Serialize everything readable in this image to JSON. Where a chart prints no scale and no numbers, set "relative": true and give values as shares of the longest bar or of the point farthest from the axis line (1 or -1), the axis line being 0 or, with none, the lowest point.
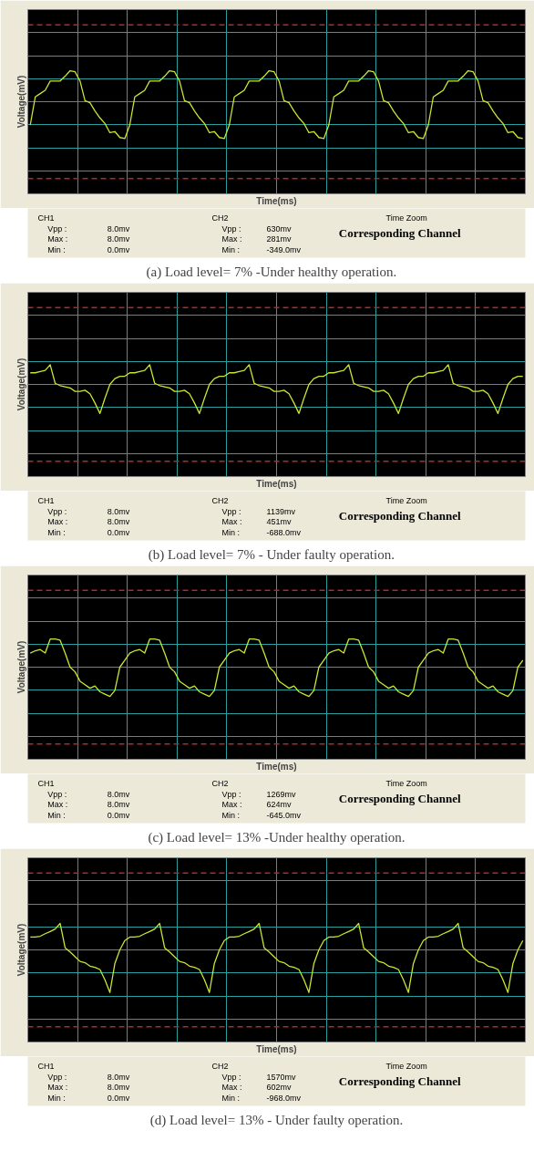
{
  "chart_data": [
    {
      "type": "line",
      "title": "(a)    Load level= 7% -Under healthy operation.",
      "xlabel": "Time(ms)",
      "ylabel": "Voltage(mV)",
      "relative": true,
      "grid": true,
      "categories": [
        null,
        null,
        null,
        null,
        null,
        null,
        null,
        null,
        null,
        null,
        null,
        null,
        null,
        null,
        null,
        null,
        null,
        null,
        null,
        null,
        null,
        null,
        null,
        null,
        null,
        null,
        null,
        null,
        null,
        null,
        null,
        null,
        null,
        null,
        null,
        null,
        null,
        null,
        null,
        null,
        null,
        null,
        null,
        null,
        null,
        null,
        null,
        null,
        null,
        null,
        null,
        null,
        null,
        null,
        null,
        null,
        null,
        null,
        null,
        null,
        null,
        null,
        null,
        null,
        null,
        null,
        null,
        null,
        null,
        null,
        null,
        null,
        null,
        null,
        null,
        null,
        null,
        null,
        null,
        null,
        null,
        null,
        null,
        null,
        null,
        null,
        null,
        null,
        null,
        null,
        null,
        null,
        null,
        null,
        null,
        null,
        null,
        null,
        null,
        null
      ],
      "series": [
        {
          "color": "#c8e632",
          "values": [
            -0.63,
            0.13,
            0.22,
            0.31,
            0.56,
            0.56,
            0.56,
            0.69,
            0.84,
            0.81,
            0.56,
            0.03,
            -0.03,
            -0.25,
            -0.44,
            -0.59,
            -0.84,
            -0.81,
            -0.97,
            -1.0,
            -0.63,
            0.13,
            0.22,
            0.31,
            0.56,
            0.56,
            0.56,
            0.69,
            0.84,
            0.81,
            0.56,
            0.03,
            -0.03,
            -0.25,
            -0.44,
            -0.59,
            -0.84,
            -0.81,
            -0.97,
            -1.0,
            -0.63,
            0.13,
            0.22,
            0.31,
            0.56,
            0.56,
            0.56,
            0.69,
            0.84,
            0.81,
            0.56,
            0.03,
            -0.03,
            -0.25,
            -0.44,
            -0.59,
            -0.84,
            -0.81,
            -0.97,
            -1.0,
            -0.63,
            0.13,
            0.22,
            0.31,
            0.56,
            0.56,
            0.56,
            0.69,
            0.84,
            0.81,
            0.56,
            0.03,
            -0.03,
            -0.25,
            -0.44,
            -0.59,
            -0.84,
            -0.81,
            -0.97,
            -1.0,
            -0.63,
            0.13,
            0.22,
            0.31,
            0.56,
            0.56,
            0.56,
            0.69,
            0.84,
            0.81,
            0.56,
            0.03,
            -0.03,
            -0.25,
            -0.44,
            -0.59,
            -0.84,
            -0.81,
            -0.97,
            -1.0
          ]
        }
      ],
      "ref_lines": [
        {
          "axis": "y",
          "value": 2.08,
          "color": "#b4282d",
          "line_style": "dashed"
        },
        {
          "axis": "y",
          "value": -2.08,
          "color": "#b4282d",
          "line_style": "dashed"
        }
      ],
      "annotations": [
        "CH1",
        "Vpp :",
        "8.0mv",
        "Max :",
        "8.0mv",
        "Min :",
        "0.0mv",
        "CH2",
        "Vpp :",
        "630mv",
        "Max :",
        "281mv",
        "Min :",
        "-349.0mv",
        "Time Zoom",
        "Corresponding Channel"
      ]
    },
    {
      "type": "line",
      "title": "(b)    Load level= 7% - Under faulty operation.",
      "xlabel": "Time(ms)",
      "ylabel": "Voltage(mV)",
      "relative": true,
      "grid": true,
      "categories": [
        null,
        null,
        null,
        null,
        null,
        null,
        null,
        null,
        null,
        null,
        null,
        null,
        null,
        null,
        null,
        null,
        null,
        null,
        null,
        null,
        null,
        null,
        null,
        null,
        null,
        null,
        null,
        null,
        null,
        null,
        null,
        null,
        null,
        null,
        null,
        null,
        null,
        null,
        null,
        null,
        null,
        null,
        null,
        null,
        null,
        null,
        null,
        null,
        null,
        null,
        null,
        null,
        null,
        null,
        null,
        null,
        null,
        null,
        null,
        null,
        null,
        null,
        null,
        null,
        null,
        null,
        null,
        null,
        null,
        null,
        null,
        null,
        null,
        null,
        null,
        null,
        null,
        null,
        null,
        null,
        null,
        null,
        null,
        null,
        null,
        null,
        null,
        null,
        null,
        null,
        null,
        null,
        null,
        null,
        null,
        null,
        null,
        null,
        null,
        null
      ],
      "series": [
        {
          "color": "#c8e632",
          "values": [
            0.4,
            0.4,
            0.44,
            0.48,
            0.68,
            0.04,
            -0.04,
            -0.08,
            -0.12,
            -0.24,
            -0.24,
            -0.2,
            -0.32,
            -0.64,
            -1.0,
            -0.48,
            0.0,
            0.2,
            0.28,
            0.28,
            0.4,
            0.4,
            0.44,
            0.48,
            0.68,
            0.04,
            -0.04,
            -0.08,
            -0.12,
            -0.24,
            -0.24,
            -0.2,
            -0.32,
            -0.64,
            -1.0,
            -0.48,
            0.0,
            0.2,
            0.28,
            0.28,
            0.4,
            0.4,
            0.44,
            0.48,
            0.68,
            0.04,
            -0.04,
            -0.08,
            -0.12,
            -0.24,
            -0.24,
            -0.2,
            -0.32,
            -0.64,
            -1.0,
            -0.48,
            0.0,
            0.2,
            0.28,
            0.28,
            0.4,
            0.4,
            0.44,
            0.48,
            0.68,
            0.04,
            -0.04,
            -0.08,
            -0.12,
            -0.24,
            -0.24,
            -0.2,
            -0.32,
            -0.64,
            -1.0,
            -0.48,
            0.0,
            0.2,
            0.28,
            0.28,
            0.4,
            0.4,
            0.44,
            0.48,
            0.68,
            0.04,
            -0.04,
            -0.08,
            -0.12,
            -0.24,
            -0.24,
            -0.2,
            -0.32,
            -0.64,
            -1.0,
            -0.48,
            0.0,
            0.2,
            0.28,
            0.28
          ]
        }
      ],
      "ref_lines": [
        {
          "axis": "y",
          "value": 2.64,
          "color": "#b4282d",
          "line_style": "dashed"
        },
        {
          "axis": "y",
          "value": -2.64,
          "color": "#b4282d",
          "line_style": "dashed"
        }
      ],
      "annotations": [
        "CH1",
        "Vpp :",
        "8.0mv",
        "Max :",
        "8.0mv",
        "Min :",
        "0.0mv",
        "CH2",
        "Vpp :",
        "1139mv",
        "Max :",
        "451mv",
        "Min :",
        "-688.0mv",
        "Time Zoom",
        "Corresponding Channel"
      ]
    },
    {
      "type": "line",
      "title": "(c) Load level= 13% -Under healthy operation.",
      "xlabel": "Time(ms)",
      "ylabel": "Voltage(mV)",
      "relative": true,
      "grid": true,
      "categories": [
        null,
        null,
        null,
        null,
        null,
        null,
        null,
        null,
        null,
        null,
        null,
        null,
        null,
        null,
        null,
        null,
        null,
        null,
        null,
        null,
        null,
        null,
        null,
        null,
        null,
        null,
        null,
        null,
        null,
        null,
        null,
        null,
        null,
        null,
        null,
        null,
        null,
        null,
        null,
        null,
        null,
        null,
        null,
        null,
        null,
        null,
        null,
        null,
        null,
        null,
        null,
        null,
        null,
        null,
        null,
        null,
        null,
        null,
        null,
        null,
        null,
        null,
        null,
        null,
        null,
        null,
        null,
        null,
        null,
        null,
        null,
        null,
        null,
        null,
        null,
        null,
        null,
        null,
        null,
        null,
        null,
        null,
        null,
        null,
        null,
        null,
        null,
        null,
        null,
        null,
        null,
        null,
        null,
        null,
        null,
        null,
        null,
        null,
        null,
        null
      ],
      "series": [
        {
          "color": "#c8e632",
          "values": [
            0.48,
            0.56,
            0.6,
            0.48,
            0.96,
            0.96,
            0.92,
            0.48,
            0.0,
            -0.16,
            -0.48,
            -0.6,
            -0.72,
            -0.64,
            -0.84,
            -0.92,
            -1.0,
            -0.8,
            0.0,
            0.24,
            0.48,
            0.56,
            0.6,
            0.48,
            0.96,
            0.96,
            0.92,
            0.48,
            0.0,
            -0.16,
            -0.48,
            -0.6,
            -0.72,
            -0.64,
            -0.84,
            -0.92,
            -1.0,
            -0.8,
            0.0,
            0.24,
            0.48,
            0.56,
            0.6,
            0.48,
            0.96,
            0.96,
            0.92,
            0.48,
            0.0,
            -0.16,
            -0.48,
            -0.6,
            -0.72,
            -0.64,
            -0.84,
            -0.92,
            -1.0,
            -0.8,
            0.0,
            0.24,
            0.48,
            0.56,
            0.6,
            0.48,
            0.96,
            0.96,
            0.92,
            0.48,
            0.0,
            -0.16,
            -0.48,
            -0.6,
            -0.72,
            -0.64,
            -0.84,
            -0.92,
            -1.0,
            -0.8,
            0.0,
            0.24,
            0.48,
            0.56,
            0.6,
            0.48,
            0.96,
            0.96,
            0.92,
            0.48,
            0.0,
            -0.16,
            -0.48,
            -0.6,
            -0.72,
            -0.64,
            -0.84,
            -0.92,
            -1.0,
            -0.8,
            0.0,
            0.24
          ]
        }
      ],
      "ref_lines": [
        {
          "axis": "y",
          "value": 2.62,
          "color": "#b4282d",
          "line_style": "dashed"
        },
        {
          "axis": "y",
          "value": -2.62,
          "color": "#b4282d",
          "line_style": "dashed"
        }
      ],
      "annotations": [
        "CH1",
        "Vpp :",
        "8.0mv",
        "Max :",
        "8.0mv",
        "Min :",
        "0.0mv",
        "CH2",
        "Vpp :",
        "1269mv",
        "Max :",
        "624mv",
        "Min :",
        "-645.0mv",
        "Time Zoom",
        "Corresponding Channel"
      ]
    },
    {
      "type": "line",
      "title": "(d) Load level= 13% - Under faulty operation.",
      "xlabel": "Time(ms)",
      "ylabel": "Voltage(mV)",
      "relative": true,
      "grid": true,
      "categories": [
        null,
        null,
        null,
        null,
        null,
        null,
        null,
        null,
        null,
        null,
        null,
        null,
        null,
        null,
        null,
        null,
        null,
        null,
        null,
        null,
        null,
        null,
        null,
        null,
        null,
        null,
        null,
        null,
        null,
        null,
        null,
        null,
        null,
        null,
        null,
        null,
        null,
        null,
        null,
        null,
        null,
        null,
        null,
        null,
        null,
        null,
        null,
        null,
        null,
        null,
        null,
        null,
        null,
        null,
        null,
        null,
        null,
        null,
        null,
        null,
        null,
        null,
        null,
        null,
        null,
        null,
        null,
        null,
        null,
        null,
        null,
        null,
        null,
        null,
        null,
        null,
        null,
        null,
        null,
        null,
        null,
        null,
        null,
        null,
        null,
        null,
        null,
        null,
        null,
        null,
        null,
        null,
        null,
        null,
        null,
        null,
        null,
        null,
        null,
        null
      ],
      "series": [
        {
          "color": "#c8e632",
          "values": [
            0.3,
            0.3,
            0.32,
            0.38,
            0.43,
            0.49,
            0.62,
            0.05,
            -0.05,
            -0.16,
            -0.27,
            -0.3,
            -0.38,
            -0.41,
            -0.46,
            -0.7,
            -1.0,
            -0.32,
            0.0,
            0.22,
            0.3,
            0.3,
            0.32,
            0.38,
            0.43,
            0.49,
            0.62,
            0.05,
            -0.05,
            -0.16,
            -0.27,
            -0.3,
            -0.38,
            -0.41,
            -0.46,
            -0.7,
            -1.0,
            -0.32,
            0.0,
            0.22,
            0.3,
            0.3,
            0.32,
            0.38,
            0.43,
            0.49,
            0.62,
            0.05,
            -0.05,
            -0.16,
            -0.27,
            -0.3,
            -0.38,
            -0.41,
            -0.46,
            -0.7,
            -1.0,
            -0.32,
            0.0,
            0.22,
            0.3,
            0.3,
            0.32,
            0.38,
            0.43,
            0.49,
            0.62,
            0.05,
            -0.05,
            -0.16,
            -0.27,
            -0.3,
            -0.38,
            -0.41,
            -0.46,
            -0.7,
            -1.0,
            -0.32,
            0.0,
            0.22,
            0.3,
            0.3,
            0.32,
            0.38,
            0.43,
            0.49,
            0.62,
            0.05,
            -0.05,
            -0.16,
            -0.27,
            -0.3,
            -0.38,
            -0.41,
            -0.46,
            -0.7,
            -1.0,
            -0.32,
            0.0,
            0.22
          ]
        }
      ],
      "ref_lines": [
        {
          "axis": "y",
          "value": 1.8,
          "color": "#b4282d",
          "line_style": "dashed"
        },
        {
          "axis": "y",
          "value": -1.8,
          "color": "#b4282d",
          "line_style": "dashed"
        }
      ],
      "annotations": [
        "CH1",
        "Vpp :",
        "8.0mv",
        "Max :",
        "8.0mv",
        "Min :",
        "0.0mv",
        "CH2",
        "Vpp :",
        "1570mv",
        "Max :",
        "602mv",
        "Min :",
        "-968.0mv",
        "Time Zoom",
        "Corresponding Channel"
      ]
    }
  ]
}
